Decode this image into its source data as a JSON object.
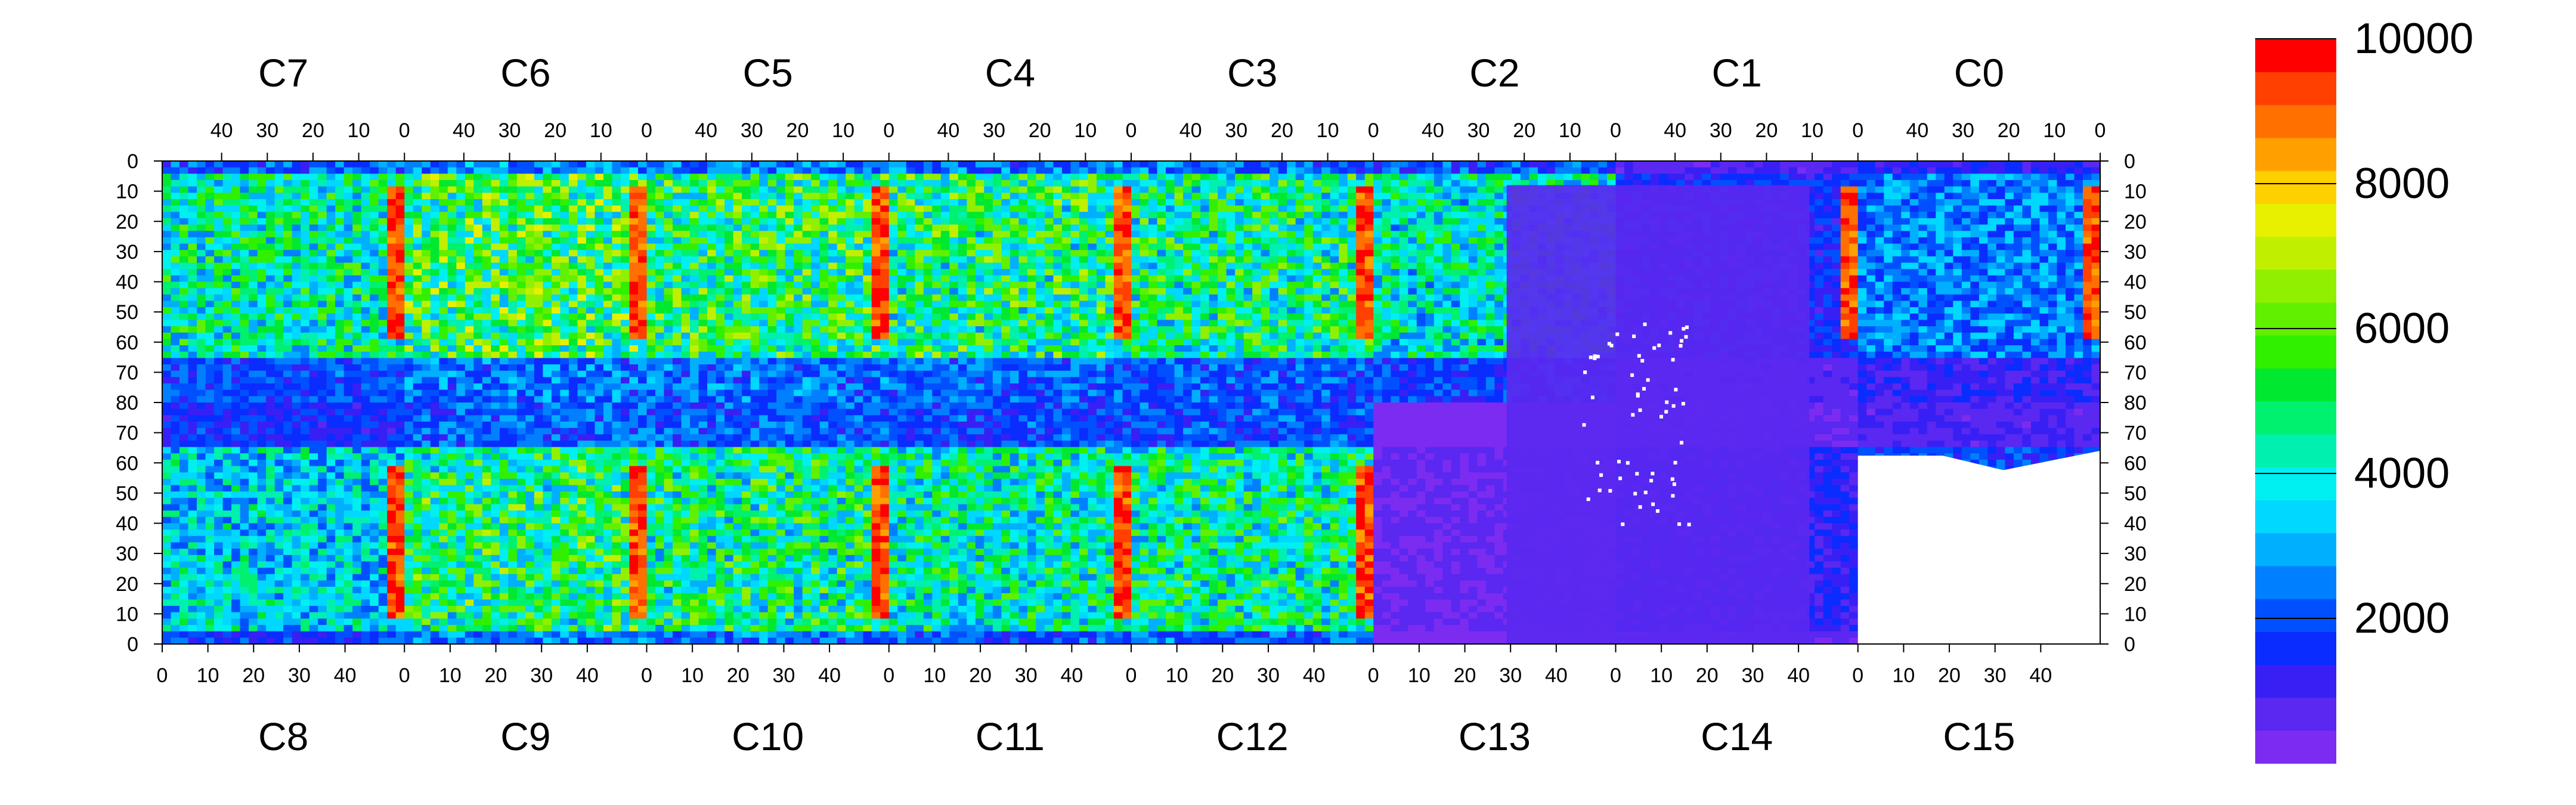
{
  "chart_data": {
    "type": "heatmap",
    "top_chip_labels": [
      "C7",
      "C6",
      "C5",
      "C4",
      "C3",
      "C2",
      "C1",
      "C0"
    ],
    "bottom_chip_labels": [
      "C8",
      "C9",
      "C10",
      "C11",
      "C12",
      "C13",
      "C14",
      "C15"
    ],
    "top_x_ticks": [
      "40",
      "30",
      "20",
      "10",
      "0"
    ],
    "bottom_x_ticks": [
      "0",
      "10",
      "20",
      "30",
      "40"
    ],
    "y_ticks": [
      "0",
      "10",
      "20",
      "30",
      "40",
      "50",
      "60",
      "70",
      "80",
      "70",
      "60",
      "50",
      "40",
      "30",
      "20",
      "10",
      "0"
    ],
    "colorbar": {
      "min": 0,
      "max": 10000,
      "tick_values": [
        2000,
        4000,
        6000,
        8000,
        10000
      ],
      "tick_labels": [
        "2000",
        "4000",
        "6000",
        "8000",
        "10000"
      ],
      "colors": [
        "#7b2cf0",
        "#5a28f0",
        "#3820f5",
        "#0a2cff",
        "#0050ff",
        "#0080ff",
        "#00b0ff",
        "#00d8ff",
        "#00f0f0",
        "#00f0b0",
        "#00f070",
        "#00e830",
        "#30f000",
        "#60f000",
        "#90f000",
        "#c0f000",
        "#e8f000",
        "#ffd000",
        "#ffa000",
        "#ff7000",
        "#ff4000",
        "#ff0000"
      ]
    },
    "chip_summary": [
      {
        "chip": "C7",
        "typical": 4200,
        "edge_col": "high"
      },
      {
        "chip": "C6",
        "typical": 5200,
        "edge_col": "high"
      },
      {
        "chip": "C5",
        "typical": 5000,
        "edge_col": "high"
      },
      {
        "chip": "C4",
        "typical": 4800,
        "edge_col": "high"
      },
      {
        "chip": "C3",
        "typical": 4600,
        "edge_col": "high"
      },
      {
        "chip": "C2",
        "typical": 4000,
        "edge_col": "low"
      },
      {
        "chip": "C1",
        "typical": 1500,
        "edge_col": "high"
      },
      {
        "chip": "C0",
        "typical": 2500,
        "edge_col": "high"
      },
      {
        "chip": "C8",
        "typical": 3500,
        "edge_col": "high"
      },
      {
        "chip": "C9",
        "typical": 4800,
        "edge_col": "high"
      },
      {
        "chip": "C10",
        "typical": 4600,
        "edge_col": "high"
      },
      {
        "chip": "C11",
        "typical": 4200,
        "edge_col": "high"
      },
      {
        "chip": "C12",
        "typical": 4400,
        "edge_col": "high"
      },
      {
        "chip": "C13",
        "typical": 500,
        "edge_col": "low"
      },
      {
        "chip": "C14",
        "typical": 1200,
        "edge_col": "low"
      },
      {
        "chip": "C15",
        "typical": 1800,
        "edge_col": "high"
      }
    ]
  }
}
